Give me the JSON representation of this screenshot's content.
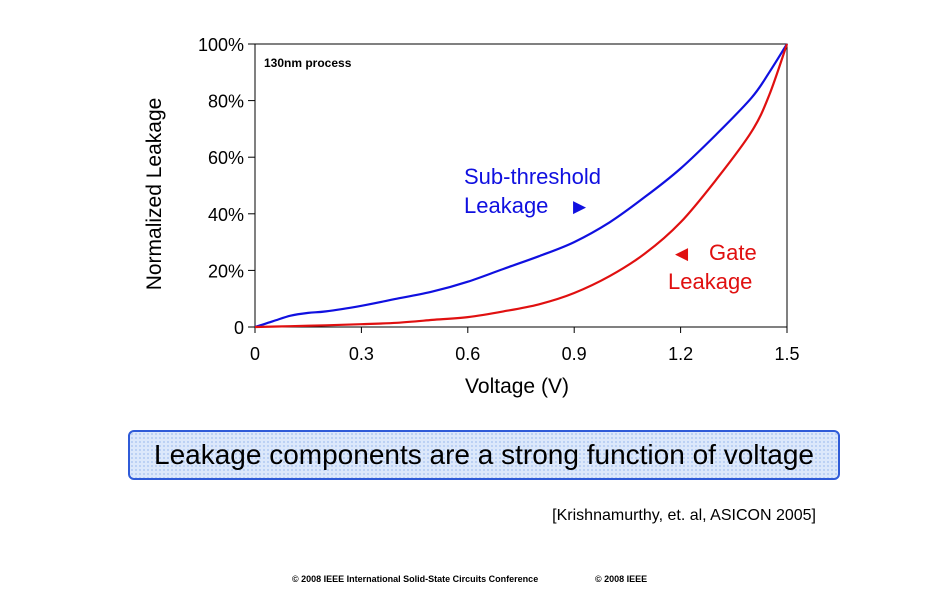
{
  "chart_data": {
    "type": "line",
    "ylabel": "Normalized Leakage",
    "xlabel": "Voltage (V)",
    "annotation": "130nm process",
    "xlim": [
      0,
      1.5
    ],
    "ylim": [
      0,
      100
    ],
    "x_ticks": [
      0,
      0.3,
      0.6,
      0.9,
      1.2,
      1.5
    ],
    "x_tick_labels": [
      "0",
      "0.3",
      "0.6",
      "0.9",
      "1.2",
      "1.5"
    ],
    "y_ticks": [
      0,
      20,
      40,
      60,
      80,
      100
    ],
    "y_tick_labels": [
      "0",
      "20%",
      "40%",
      "60%",
      "80%",
      "100%"
    ],
    "grid": false,
    "series": [
      {
        "name": "Sub-threshold Leakage",
        "label_lines": [
          "Sub-threshold",
          "Leakage"
        ],
        "label_arrow": "▶",
        "color": "#1010e0",
        "x": [
          0,
          0.05,
          0.1,
          0.15,
          0.2,
          0.3,
          0.4,
          0.5,
          0.6,
          0.7,
          0.8,
          0.9,
          1.0,
          1.1,
          1.2,
          1.3,
          1.4,
          1.45,
          1.5
        ],
        "y": [
          0,
          2,
          4,
          5,
          5.5,
          7.5,
          10,
          12.5,
          16,
          20.5,
          25,
          30,
          37,
          46,
          56,
          68,
          81,
          90,
          100
        ]
      },
      {
        "name": "Gate Leakage",
        "label_lines": [
          "Gate",
          "Leakage"
        ],
        "label_arrow": "◀",
        "color": "#e01010",
        "x": [
          0,
          0.1,
          0.2,
          0.3,
          0.4,
          0.5,
          0.6,
          0.7,
          0.8,
          0.9,
          1.0,
          1.1,
          1.2,
          1.3,
          1.4,
          1.45,
          1.5
        ],
        "y": [
          0,
          0.3,
          0.6,
          1,
          1.5,
          2.5,
          3.5,
          5.5,
          8,
          12,
          18,
          26,
          37,
          52,
          69,
          82,
          100
        ]
      }
    ]
  },
  "callout_text": "Leakage components are a strong function of voltage",
  "citation": "[Krishnamurthy, et. al, ASICON 2005]",
  "footer_left": "© 2008 IEEE International Solid-State Circuits Conference",
  "footer_right": "© 2008 IEEE"
}
